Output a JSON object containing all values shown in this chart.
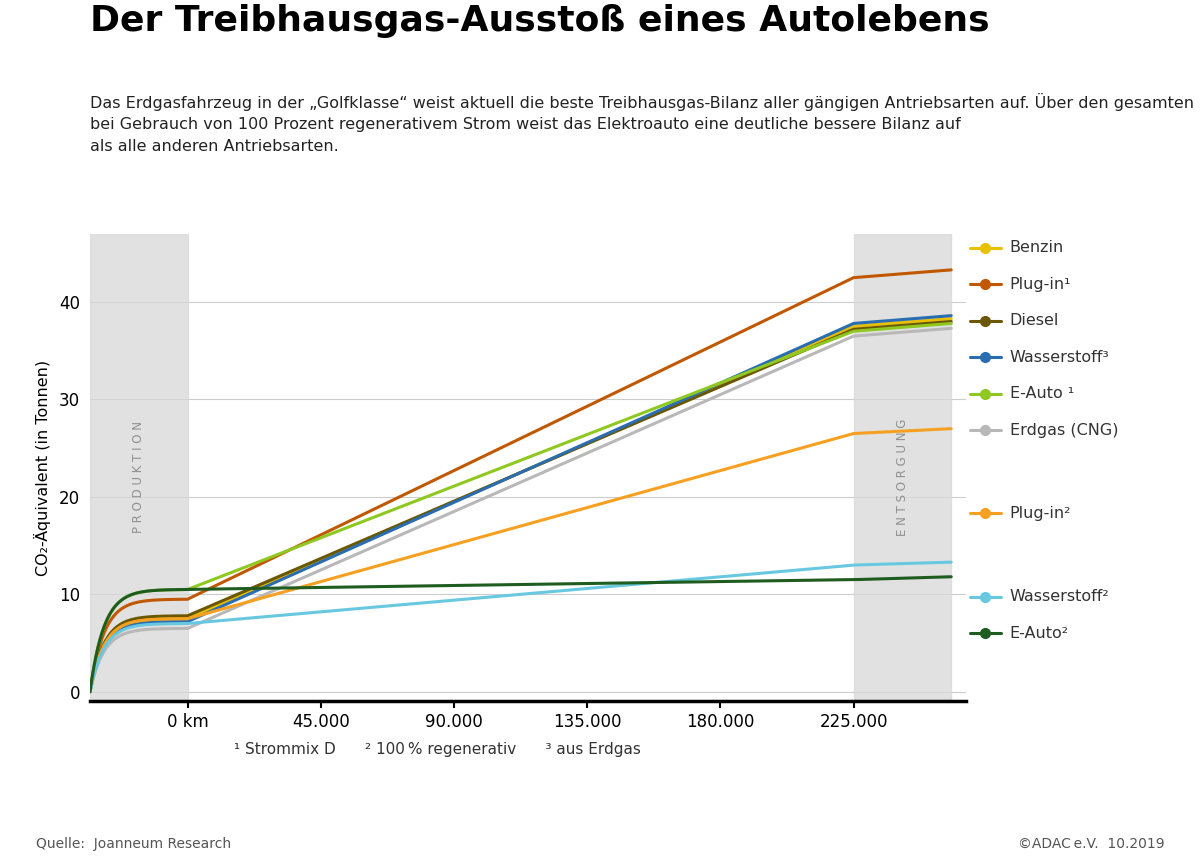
{
  "title": "Der Treibhausgas-Ausstoß eines Autolebens",
  "subtitle_lines": [
    "Das Erdgasfahrzeug in der „Golfklasse“ weist aktuell die beste Treibhausgas-Bilanz aller gängigen Antriebsarten auf. Über den gesamten Lebenszyklus liegt sein Treibhausgas-Ausstoß unter dem des Elektroautos. Erst",
    "bei Gebrauch von 100 Prozent regenerativem Strom weist das Elektroauto eine deutliche bessere Bilanz auf",
    "als alle anderen Antriebsarten."
  ],
  "ylabel": "CO₂-Äquivalent (in Tonnen)",
  "footnote": "¹ Strommix D      ² 100 % regenerativ      ³ aus Erdgas",
  "source": "Quelle:  Joanneum Research",
  "copyright": "©ADAC e.V.  10.2019",
  "prod_x1": -33000,
  "prod_x2": 0,
  "ents_x1": 225000,
  "ents_x2": 258000,
  "x_ticks": [
    0,
    45000,
    90000,
    135000,
    180000,
    225000
  ],
  "x_tick_labels": [
    "0 km",
    "45.000",
    "90.000",
    "135.000",
    "180.000",
    "225.000"
  ],
  "y_ticks": [
    0,
    10,
    20,
    30,
    40
  ],
  "xlim": [
    -33000,
    263000
  ],
  "ylim": [
    -1,
    47
  ],
  "lines": [
    {
      "label": "Benzin",
      "color": "#e8c000",
      "prod_y": 7.5,
      "main_y": 37.5,
      "ents_delta": 0.8
    },
    {
      "label": "Plug-in¹",
      "color": "#c05800",
      "prod_y": 9.5,
      "main_y": 42.5,
      "ents_delta": 0.8
    },
    {
      "label": "Diesel",
      "color": "#6b5700",
      "prod_y": 7.8,
      "main_y": 37.2,
      "ents_delta": 0.8
    },
    {
      "label": "Wasserstoff³",
      "color": "#2a6db0",
      "prod_y": 7.2,
      "main_y": 37.8,
      "ents_delta": 0.8
    },
    {
      "label": "E-Auto ¹",
      "color": "#8ec820",
      "prod_y": 10.5,
      "main_y": 37.0,
      "ents_delta": 0.8
    },
    {
      "label": "Erdgas (CNG)",
      "color": "#b8b8b8",
      "prod_y": 6.5,
      "main_y": 36.5,
      "ents_delta": 0.8
    },
    {
      "label": "Plug-in²",
      "color": "#f5a020",
      "prod_y": 7.5,
      "main_y": 26.5,
      "ents_delta": 0.5
    },
    {
      "label": "Wasserstoff²",
      "color": "#68c8e0",
      "prod_y": 7.0,
      "main_y": 13.0,
      "ents_delta": 0.3
    },
    {
      "label": "E-Auto²",
      "color": "#1e5c20",
      "prod_y": 10.5,
      "main_y": 11.5,
      "ents_delta": 0.3
    }
  ]
}
